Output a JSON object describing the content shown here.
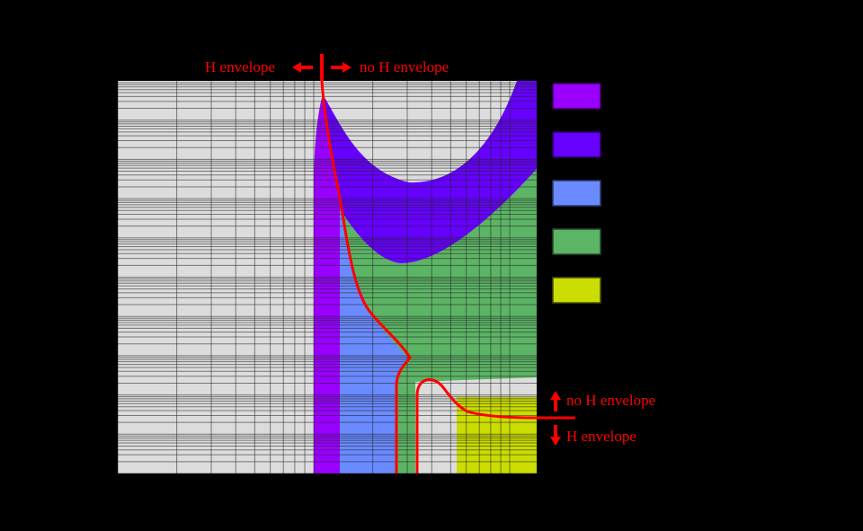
{
  "chart_data": {
    "type": "area",
    "title": "",
    "xlabel": "",
    "ylabel": "",
    "x_scale": "log",
    "y_scale": "log",
    "grid": true,
    "legend_position": "right",
    "background": "#000000",
    "plot_background": "#dcdcdc",
    "series": [
      {
        "name": "",
        "color": "#9900ff",
        "region": "narrow vertical band rising to a cusp at the top of the plot"
      },
      {
        "name": "",
        "color": "#6600ff",
        "region": "U-shaped band from cusp sweeping up to top-right"
      },
      {
        "name": "",
        "color": "#6a8aff",
        "region": "vertical band right of the purple band, lower half"
      },
      {
        "name": "",
        "color": "#5cb465",
        "region": "large region under the U-band extending to right edge"
      },
      {
        "name": "",
        "color": "#cadc00",
        "region": "lower-right rectangle"
      }
    ],
    "annotations": [
      {
        "text": "H envelope",
        "position": "top, left of divider",
        "arrow": "left"
      },
      {
        "text": "no H envelope",
        "position": "top, right of divider",
        "arrow": "right"
      },
      {
        "text": "no H envelope",
        "position": "right side, above divider",
        "arrow": "up"
      },
      {
        "text": "H envelope",
        "position": "right side, below divider",
        "arrow": "down"
      }
    ],
    "boundary_line": {
      "color": "#ff0000",
      "description": "red curve separating H envelope / no H envelope regimes"
    }
  },
  "annotations": {
    "top_left": "H envelope",
    "top_right": "no H envelope",
    "right_up": "no H envelope",
    "right_down": "H envelope"
  },
  "legend": {
    "items": [
      {
        "color": "#9900ff",
        "label": ""
      },
      {
        "color": "#6600ff",
        "label": ""
      },
      {
        "color": "#6a8aff",
        "label": ""
      },
      {
        "color": "#5cb465",
        "label": ""
      },
      {
        "color": "#cadc00",
        "label": ""
      }
    ]
  },
  "colors": {
    "annotation": "#ff0000",
    "grid_line": "#333333",
    "plot_bg": "#dcdcdc"
  }
}
